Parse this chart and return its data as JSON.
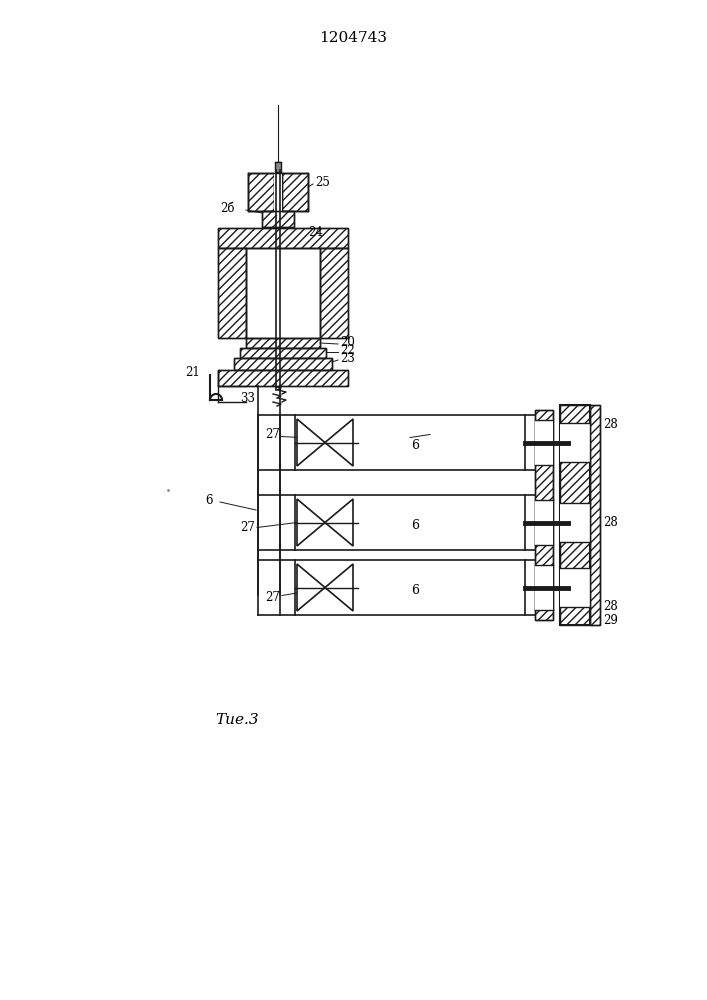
{
  "title": "1204743",
  "fig_label": "Τие.3",
  "background": "#ffffff",
  "line_color": "#1a1a1a",
  "fig_size": [
    7.07,
    10.0
  ],
  "dpi": 100
}
